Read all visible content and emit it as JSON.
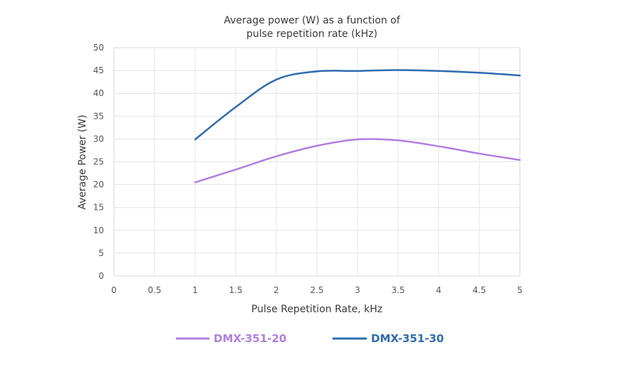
{
  "chart_data": {
    "type": "line",
    "title_lines": [
      "Average power (W) as a function of",
      "pulse repetition rate (kHz)"
    ],
    "xlabel": "Pulse Repetition Rate, kHz",
    "ylabel": "Average Power (W)",
    "xlim": [
      0,
      5
    ],
    "ylim": [
      0,
      50
    ],
    "x_ticks": [
      0,
      0.5,
      1,
      1.5,
      2,
      2.5,
      3,
      3.5,
      4,
      4.5,
      5
    ],
    "x_tick_labels": [
      "0",
      "0.5",
      "1",
      "1.5",
      "2",
      "2.5",
      "3",
      "3.5",
      "4",
      "4.5",
      "5"
    ],
    "y_ticks": [
      0,
      5,
      10,
      15,
      20,
      25,
      30,
      35,
      40,
      45,
      50
    ],
    "y_tick_labels": [
      "0",
      "5",
      "10",
      "15",
      "20",
      "25",
      "30",
      "35",
      "40",
      "45",
      "50"
    ],
    "grid": true,
    "legend_position": "bottom",
    "series": [
      {
        "name": "DMX-351-20",
        "color": "#b07fe0",
        "x": [
          1,
          1.5,
          2,
          2.5,
          3,
          3.5,
          4,
          4.5,
          5
        ],
        "y": [
          20.5,
          23.3,
          26.2,
          28.5,
          29.9,
          29.7,
          28.4,
          26.8,
          25.4
        ]
      },
      {
        "name": "DMX-351-30",
        "color": "#2e6cb0",
        "x": [
          1,
          1.5,
          2,
          2.5,
          3,
          3.5,
          4,
          4.5,
          5
        ],
        "y": [
          29.9,
          37.0,
          43.0,
          44.8,
          44.9,
          45.1,
          44.9,
          44.5,
          43.9
        ]
      }
    ]
  }
}
